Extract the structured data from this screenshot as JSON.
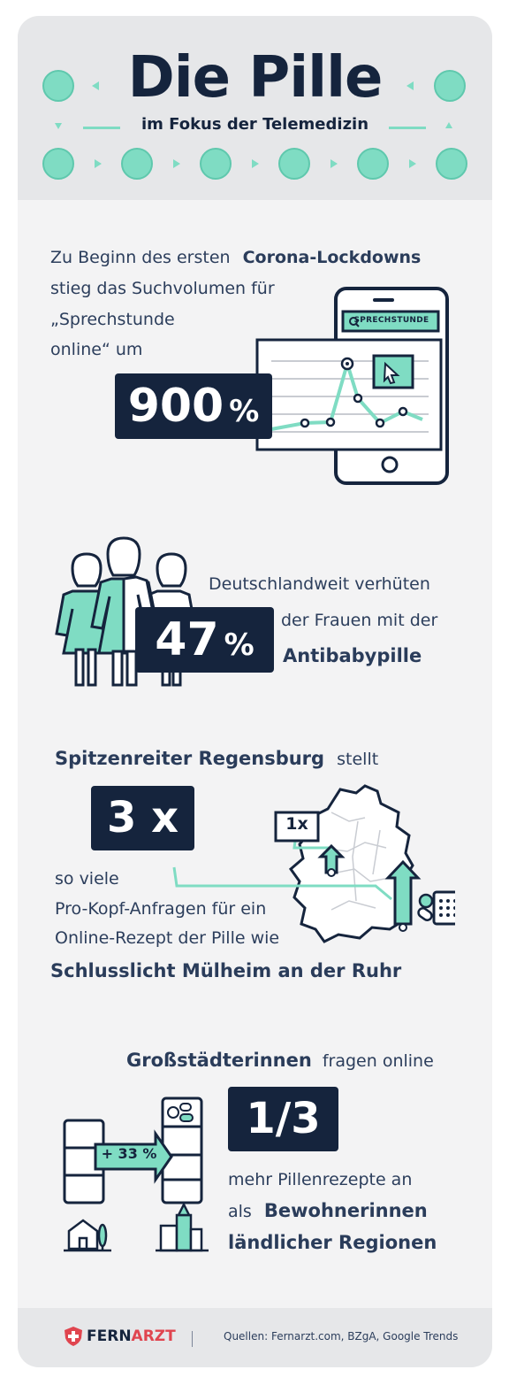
{
  "header": {
    "title": "Die Pille",
    "subtitle": "im Fokus der Telemedizin"
  },
  "section1": {
    "line1": "Zu Beginn des ersten",
    "line1_bold": "Corona-Lockdowns",
    "line2": "stieg das Suchvolumen für",
    "line3": "„Sprechstunde",
    "line4": "online“ um",
    "stat": "900",
    "stat_unit": "%",
    "phone_search_label": "SPRECHSTUNDE"
  },
  "section2": {
    "line1": "Deutschlandweit verhüten",
    "line2": "der Frauen mit der",
    "line3_bold": "Antibabypille",
    "stat": "47",
    "stat_unit": "%"
  },
  "section3": {
    "line1_bold": "Spitzenreiter Regensburg",
    "line1_rest": "stellt",
    "stat": "3 x",
    "map_label": "1x",
    "line2": "so viele",
    "line3": "Pro-Kopf-Anfragen für ein",
    "line4": "Online-Rezept der Pille wie",
    "line5_bold": "Schlusslicht Mülheim an der Ruhr"
  },
  "section4": {
    "line1_bold": "Großstädterinnen",
    "line1_rest": "fragen online",
    "stat": "1/3",
    "arrow_label": "+ 33 %",
    "line2": "mehr Pillenrezepte an",
    "line3": "als",
    "line3_bold": "Bewohnerinnen",
    "line4_bold": "ländlicher Regionen"
  },
  "footer": {
    "logo_part1": "FERN",
    "logo_part2": "ARZT",
    "sources": "Quellen: Fernarzt.com, BZgA, Google Trends"
  },
  "colors": {
    "navy": "#15243d",
    "mint": "#7fdcc3",
    "accent_red": "#e0454f",
    "background": "#f3f3f4"
  }
}
